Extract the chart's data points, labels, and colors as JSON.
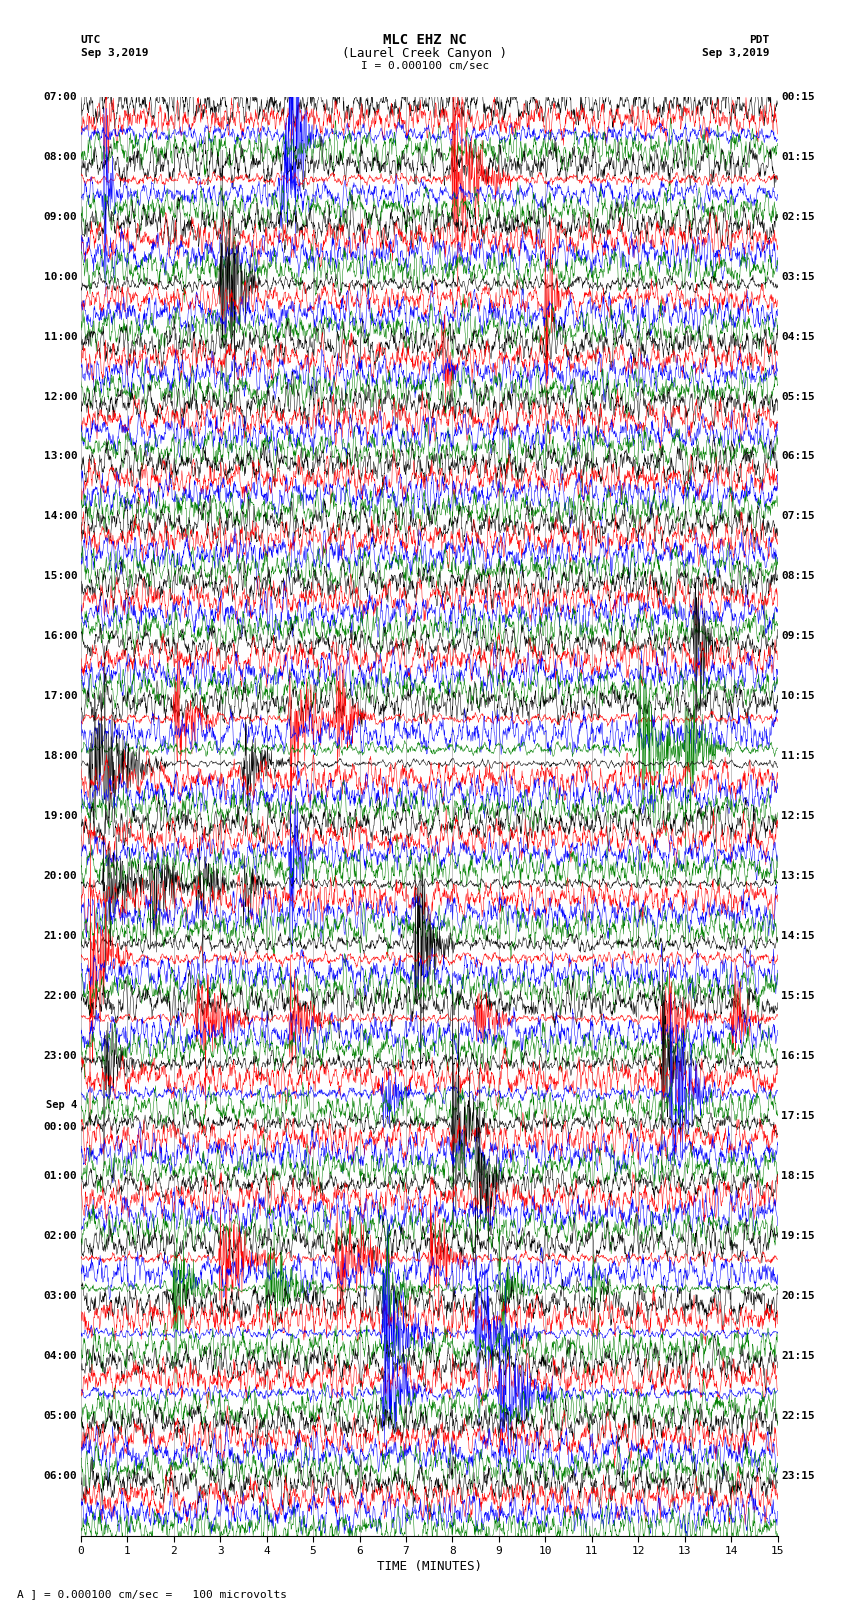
{
  "title_line1": "MLC EHZ NC",
  "title_line2": "(Laurel Creek Canyon )",
  "scale_text": "I = 0.000100 cm/sec",
  "utc_label": "UTC",
  "pdt_label": "PDT",
  "date_left": "Sep 3,2019",
  "date_right": "Sep 3,2019",
  "xlabel": "TIME (MINUTES)",
  "footer_text": "A ] = 0.000100 cm/sec =   100 microvolts",
  "left_times": [
    "07:00",
    "08:00",
    "09:00",
    "10:00",
    "11:00",
    "12:00",
    "13:00",
    "14:00",
    "15:00",
    "16:00",
    "17:00",
    "18:00",
    "19:00",
    "20:00",
    "21:00",
    "22:00",
    "23:00",
    "Sep 4\n00:00",
    "01:00",
    "02:00",
    "03:00",
    "04:00",
    "05:00",
    "06:00"
  ],
  "right_times": [
    "00:15",
    "01:15",
    "02:15",
    "03:15",
    "04:15",
    "05:15",
    "06:15",
    "07:15",
    "08:15",
    "09:15",
    "10:15",
    "11:15",
    "12:15",
    "13:15",
    "14:15",
    "15:15",
    "16:15",
    "17:15",
    "18:15",
    "19:15",
    "20:15",
    "21:15",
    "22:15",
    "23:15"
  ],
  "n_rows": 24,
  "traces_per_row": 4,
  "colors": [
    "black",
    "red",
    "blue",
    "green"
  ],
  "bg_color": "#ffffff",
  "xmin": 0,
  "xmax": 15,
  "fig_width": 8.5,
  "fig_height": 16.13,
  "dpi": 100,
  "grid_color": "#aaaaaa",
  "lw": 0.35
}
